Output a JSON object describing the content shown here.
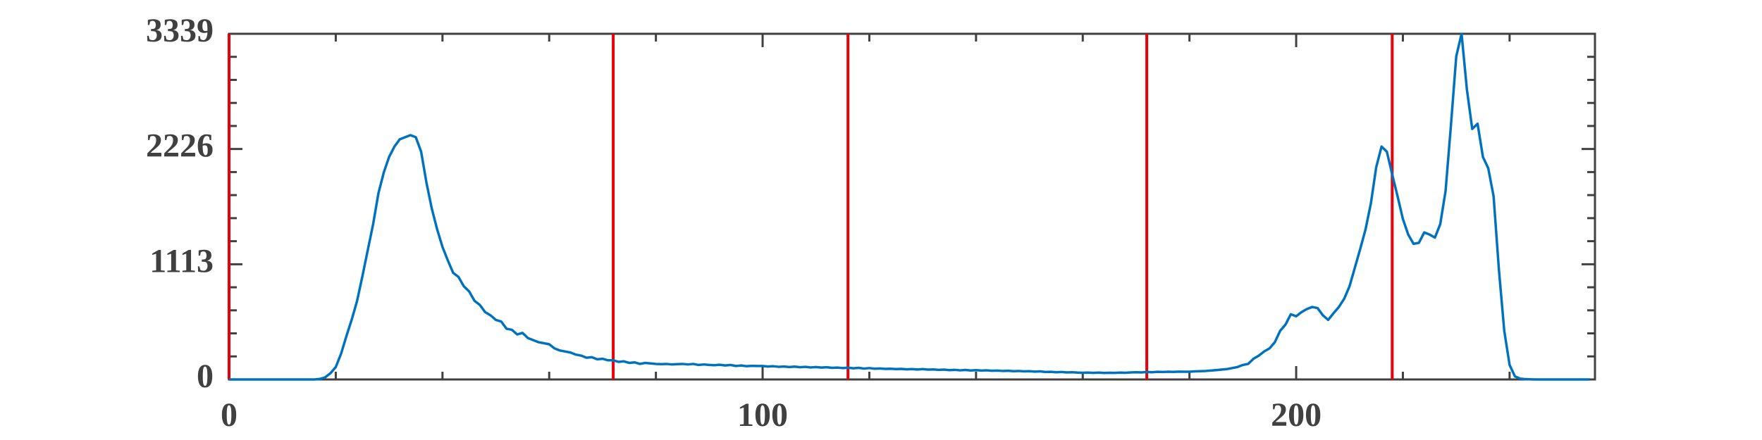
{
  "chart_data": {
    "type": "line",
    "color": "#0072bd",
    "x": [
      0,
      1,
      2,
      3,
      4,
      5,
      6,
      7,
      8,
      9,
      10,
      11,
      12,
      13,
      14,
      15,
      16,
      17,
      18,
      19,
      20,
      21,
      22,
      23,
      24,
      25,
      26,
      27,
      28,
      29,
      30,
      31,
      32,
      33,
      34,
      35,
      36,
      37,
      38,
      39,
      40,
      41,
      42,
      43,
      44,
      45,
      46,
      47,
      48,
      49,
      50,
      51,
      52,
      53,
      54,
      55,
      56,
      57,
      58,
      59,
      60,
      61,
      62,
      63,
      64,
      65,
      66,
      67,
      68,
      69,
      70,
      71,
      72,
      73,
      74,
      75,
      76,
      77,
      78,
      79,
      80,
      81,
      82,
      83,
      84,
      85,
      86,
      87,
      88,
      89,
      90,
      91,
      92,
      93,
      94,
      95,
      96,
      97,
      98,
      99,
      100,
      101,
      102,
      103,
      104,
      105,
      106,
      107,
      108,
      109,
      110,
      111,
      112,
      113,
      114,
      115,
      116,
      117,
      118,
      119,
      120,
      121,
      122,
      123,
      124,
      125,
      126,
      127,
      128,
      129,
      130,
      131,
      132,
      133,
      134,
      135,
      136,
      137,
      138,
      139,
      140,
      141,
      142,
      143,
      144,
      145,
      146,
      147,
      148,
      149,
      150,
      151,
      152,
      153,
      154,
      155,
      156,
      157,
      158,
      159,
      160,
      161,
      162,
      163,
      164,
      165,
      166,
      167,
      168,
      169,
      170,
      171,
      172,
      173,
      174,
      175,
      176,
      177,
      178,
      179,
      180,
      181,
      182,
      183,
      184,
      185,
      186,
      187,
      188,
      189,
      190,
      191,
      192,
      193,
      194,
      195,
      196,
      197,
      198,
      199,
      200,
      201,
      202,
      203,
      204,
      205,
      206,
      207,
      208,
      209,
      210,
      211,
      212,
      213,
      214,
      215,
      216,
      217,
      218,
      219,
      220,
      221,
      222,
      223,
      224,
      225,
      226,
      227,
      228,
      229,
      230,
      231,
      232,
      233,
      234,
      235,
      236,
      237,
      238,
      239,
      240,
      241,
      242,
      243,
      244,
      245,
      246,
      247,
      248,
      249,
      250,
      251,
      252,
      253,
      254,
      255
    ],
    "values": [
      0,
      0,
      0,
      0,
      0,
      0,
      0,
      0,
      0,
      0,
      0,
      0,
      0,
      0,
      0,
      0,
      0,
      5,
      20,
      60,
      120,
      250,
      420,
      580,
      760,
      1000,
      1250,
      1500,
      1800,
      2000,
      2150,
      2250,
      2320,
      2340,
      2360,
      2340,
      2200,
      1900,
      1650,
      1450,
      1280,
      1150,
      1030,
      990,
      900,
      850,
      760,
      720,
      650,
      620,
      575,
      560,
      490,
      480,
      435,
      450,
      400,
      380,
      360,
      350,
      340,
      300,
      280,
      270,
      260,
      240,
      230,
      210,
      215,
      195,
      200,
      185,
      185,
      170,
      175,
      160,
      165,
      150,
      160,
      155,
      150,
      148,
      150,
      145,
      148,
      150,
      145,
      150,
      140,
      145,
      140,
      138,
      142,
      135,
      140,
      130,
      135,
      128,
      132,
      130,
      130,
      125,
      128,
      122,
      125,
      120,
      124,
      118,
      122,
      116,
      120,
      115,
      118,
      112,
      115,
      110,
      114,
      108,
      112,
      105,
      110,
      104,
      106,
      102,
      104,
      100,
      102,
      98,
      100,
      96,
      100,
      95,
      97,
      93,
      95,
      90,
      93,
      88,
      92,
      87,
      90,
      86,
      88,
      84,
      86,
      82,
      84,
      80,
      82,
      78,
      80,
      76,
      78,
      72,
      74,
      70,
      72,
      68,
      70,
      66,
      65,
      66,
      64,
      66,
      63,
      65,
      64,
      66,
      65,
      68,
      70,
      68,
      72,
      70,
      74,
      72,
      75,
      73,
      76,
      75,
      75,
      78,
      80,
      82,
      86,
      90,
      95,
      100,
      110,
      120,
      140,
      150,
      200,
      230,
      270,
      300,
      360,
      470,
      530,
      630,
      610,
      650,
      680,
      700,
      690,
      620,
      575,
      640,
      700,
      780,
      900,
      1080,
      1260,
      1450,
      1700,
      2050,
      2250,
      2200,
      1980,
      1770,
      1550,
      1400,
      1310,
      1320,
      1420,
      1400,
      1370,
      1500,
      1820,
      2450,
      3120,
      3339,
      2800,
      2420,
      2470,
      2150,
      2040,
      1770,
      1060,
      470,
      140,
      30,
      8,
      3,
      1,
      0,
      0,
      0,
      0,
      0,
      0,
      0,
      0,
      0,
      0,
      0
    ],
    "vlines": {
      "color": "#e8000b",
      "x": [
        0,
        72,
        116,
        172,
        218
      ]
    },
    "xlim": [
      0,
      256
    ],
    "xticks": [
      0,
      100,
      200
    ],
    "xminorticks": [
      20,
      40,
      60,
      80,
      120,
      140,
      160,
      180,
      220,
      240
    ],
    "ylim": [
      0,
      3339
    ],
    "yticks": [
      0,
      1113,
      2226,
      3339
    ],
    "yminorticks": [
      222.6,
      445.2,
      667.8,
      890.4,
      1335.6,
      1558.2,
      1780.8,
      2003.4,
      2448.6,
      2671.2,
      2893.8,
      3116.4
    ],
    "grid": false
  }
}
